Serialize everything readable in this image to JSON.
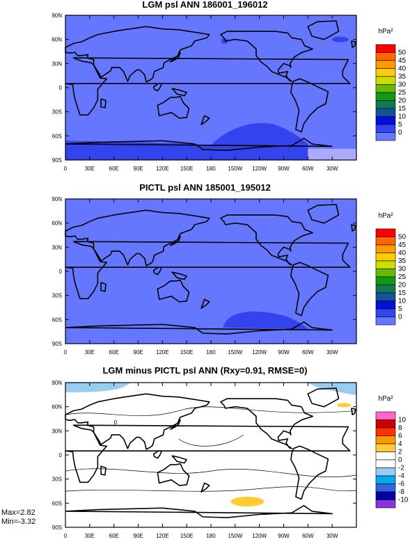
{
  "chart_data": [
    {
      "type": "heatmap",
      "title": "LGM psl ANN 186001_196012",
      "unit": "hPa²",
      "x_ticks": [
        "0",
        "30E",
        "60E",
        "90E",
        "120E",
        "150E",
        "180",
        "150W",
        "120W",
        "90W",
        "60W",
        "30W"
      ],
      "y_ticks": [
        "90N",
        "60N",
        "30N",
        "0",
        "30S",
        "60S",
        "90S"
      ],
      "colorbar": {
        "labels": [
          "50",
          "45",
          "40",
          "35",
          "30",
          "25",
          "20",
          "15",
          "10",
          "5",
          "0"
        ],
        "colors": [
          "#ff0000",
          "#ff6600",
          "#ff9900",
          "#ffcc00",
          "#ccdd00",
          "#66bb00",
          "#119911",
          "#117755",
          "#115599",
          "#0011dd",
          "#3344ee",
          "#6677ff",
          "#aaaaff",
          "#ffffff"
        ]
      },
      "background_bin": "5-10",
      "notable_regions": [
        "Southern Ocean 10-15 band near 60S",
        "Pacific sector 10-15 lobe near 60S 150W"
      ]
    },
    {
      "type": "heatmap",
      "title": "PICTL psl ANN 185001_195012",
      "unit": "hPa²",
      "x_ticks": [
        "0",
        "30E",
        "60E",
        "90E",
        "120E",
        "150E",
        "180",
        "150W",
        "120W",
        "90W",
        "60W",
        "30W"
      ],
      "y_ticks": [
        "90N",
        "60N",
        "30N",
        "0",
        "30S",
        "60S",
        "90S"
      ],
      "colorbar": {
        "labels": [
          "50",
          "45",
          "40",
          "35",
          "30",
          "25",
          "20",
          "15",
          "10",
          "5",
          "0"
        ],
        "colors": [
          "#ff0000",
          "#ff6600",
          "#ff9900",
          "#ffcc00",
          "#ccdd00",
          "#66bb00",
          "#119911",
          "#117755",
          "#115599",
          "#0011dd",
          "#3344ee",
          "#6677ff",
          "#aaaaff",
          "#ffffff"
        ]
      },
      "background_bin": "5-10",
      "notable_regions": [
        "Pacific sector 10-15 lobe near 60S 120W"
      ]
    },
    {
      "type": "heatmap",
      "title": "LGM minus PICTL psl ANN (Rxy=0.91, RMSE=0)",
      "unit": "hPa²",
      "x_ticks": [
        "0",
        "30E",
        "60E",
        "90E",
        "120E",
        "150E",
        "180",
        "150W",
        "120W",
        "90W",
        "60W",
        "30W"
      ],
      "y_ticks": [
        "90N",
        "60N",
        "30N",
        "0",
        "30S",
        "60S",
        "90S"
      ],
      "colorbar": {
        "labels": [
          "10",
          "8",
          "6",
          "4",
          "2",
          "0",
          "-2",
          "-4",
          "-6",
          "-8",
          "-10"
        ],
        "colors": [
          "#ff66cc",
          "#cc0000",
          "#ff3300",
          "#ff9900",
          "#ffcc33",
          "#ffffff",
          "#ffffff",
          "#99ccee",
          "#00aaee",
          "#3366dd",
          "#0000aa",
          "#8833dd"
        ]
      },
      "max_label": "Max=2.82",
      "min_label": "Min=-3.32",
      "contour_label": "0",
      "notable_regions": [
        "Arctic -2 to 0 patches near 80N",
        "2-4 patch near 60S 150W",
        "2-4 patch near 60N 10W"
      ]
    }
  ]
}
